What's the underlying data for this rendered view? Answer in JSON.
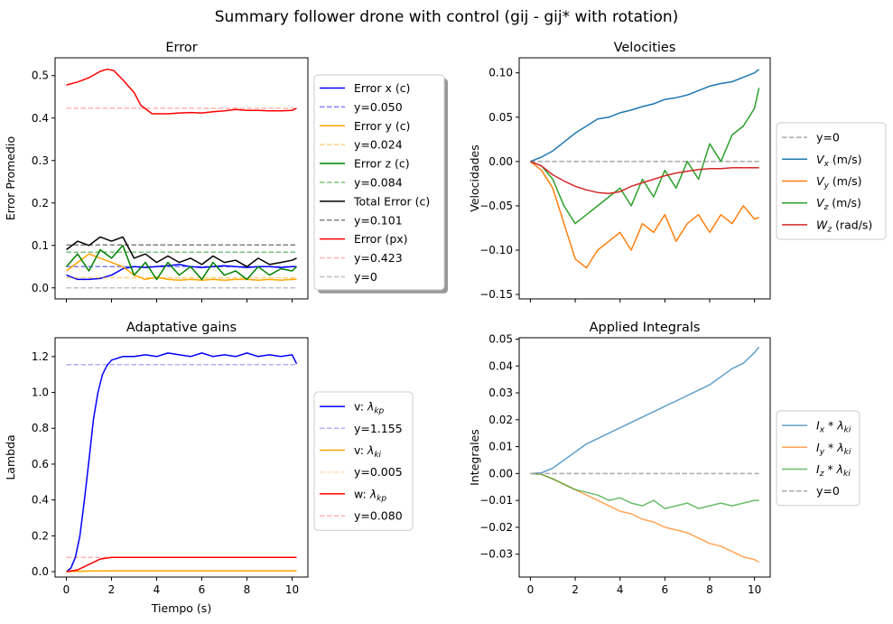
{
  "figure": {
    "title": "Summary follower drone with control (gij - gij* with rotation)"
  },
  "chart_data": [
    {
      "id": "error",
      "type": "line",
      "title": "Error",
      "xlabel": "",
      "ylabel": "Error Promedio",
      "xlim": [
        -0.5,
        10.7
      ],
      "ylim": [
        -0.026,
        0.542
      ],
      "xticks": [
        0,
        2,
        4,
        6,
        8,
        10
      ],
      "xtick_labels_visible": false,
      "yticks": [
        0.0,
        0.1,
        0.2,
        0.3,
        0.4,
        0.5
      ],
      "ytick_labels": [
        "0.0",
        "0.1",
        "0.2",
        "0.3",
        "0.4",
        "0.5"
      ],
      "legend": "outside-right",
      "series": [
        {
          "name": "Error x (c)",
          "color": "#0000ff",
          "style": "solid",
          "x": [
            0,
            0.5,
            1,
            1.5,
            2,
            2.5,
            3,
            3.5,
            4,
            4.5,
            5,
            5.5,
            6,
            6.5,
            7,
            7.5,
            8,
            8.5,
            9,
            9.5,
            10,
            10.2
          ],
          "y": [
            0.03,
            0.02,
            0.02,
            0.022,
            0.03,
            0.045,
            0.05,
            0.048,
            0.05,
            0.052,
            0.055,
            0.05,
            0.048,
            0.05,
            0.052,
            0.05,
            0.048,
            0.05,
            0.05,
            0.048,
            0.05,
            0.05
          ]
        },
        {
          "name": "y=0.050",
          "color": "#0000ff",
          "style": "dashed",
          "alpha": 0.5,
          "x": [
            0,
            10.2
          ],
          "y": [
            0.05,
            0.05
          ]
        },
        {
          "name": "Error y (c)",
          "color": "#ffa500",
          "style": "solid",
          "x": [
            0,
            0.5,
            1,
            1.5,
            2,
            2.5,
            3,
            3.5,
            4,
            4.5,
            5,
            5.5,
            6,
            6.5,
            7,
            7.5,
            8,
            8.5,
            9,
            9.5,
            10,
            10.2
          ],
          "y": [
            0.04,
            0.06,
            0.08,
            0.07,
            0.06,
            0.05,
            0.03,
            0.02,
            0.025,
            0.02,
            0.018,
            0.02,
            0.018,
            0.02,
            0.018,
            0.02,
            0.02,
            0.018,
            0.02,
            0.018,
            0.02,
            0.02
          ]
        },
        {
          "name": "y=0.024",
          "color": "#ffa500",
          "style": "dashed",
          "alpha": 0.5,
          "x": [
            0,
            10.2
          ],
          "y": [
            0.024,
            0.024
          ]
        },
        {
          "name": "Error z (c)",
          "color": "#008000",
          "style": "solid",
          "x": [
            0,
            0.5,
            1,
            1.5,
            2,
            2.5,
            3,
            3.5,
            4,
            4.5,
            5,
            5.5,
            6,
            6.5,
            7,
            7.5,
            8,
            8.5,
            9,
            9.5,
            10,
            10.2
          ],
          "y": [
            0.05,
            0.08,
            0.04,
            0.09,
            0.07,
            0.1,
            0.03,
            0.06,
            0.02,
            0.06,
            0.03,
            0.05,
            0.02,
            0.06,
            0.03,
            0.04,
            0.02,
            0.05,
            0.03,
            0.045,
            0.04,
            0.05
          ]
        },
        {
          "name": "y=0.084",
          "color": "#008000",
          "style": "dashed",
          "alpha": 0.5,
          "x": [
            0,
            10.2
          ],
          "y": [
            0.084,
            0.084
          ]
        },
        {
          "name": "Total Error (c)",
          "color": "#000000",
          "style": "solid",
          "x": [
            0,
            0.5,
            1,
            1.5,
            2,
            2.5,
            3,
            3.5,
            4,
            4.5,
            5,
            5.5,
            6,
            6.5,
            7,
            7.5,
            8,
            8.5,
            9,
            9.5,
            10,
            10.2
          ],
          "y": [
            0.09,
            0.11,
            0.1,
            0.12,
            0.11,
            0.12,
            0.07,
            0.08,
            0.06,
            0.075,
            0.06,
            0.07,
            0.055,
            0.075,
            0.06,
            0.065,
            0.05,
            0.07,
            0.055,
            0.06,
            0.065,
            0.07
          ]
        },
        {
          "name": "y=0.101",
          "color": "#000000",
          "style": "dashed",
          "alpha": 0.5,
          "x": [
            0,
            10.2
          ],
          "y": [
            0.101,
            0.101
          ]
        },
        {
          "name": "Error (px)",
          "color": "#ff0000",
          "style": "solid",
          "x": [
            0,
            0.5,
            1,
            1.5,
            1.8,
            2.1,
            2.5,
            3,
            3.3,
            3.8,
            4.5,
            5,
            5.5,
            6,
            6.5,
            7,
            7.5,
            8,
            8.5,
            9,
            9.5,
            10,
            10.2
          ],
          "y": [
            0.478,
            0.485,
            0.495,
            0.51,
            0.515,
            0.512,
            0.49,
            0.46,
            0.43,
            0.41,
            0.41,
            0.412,
            0.413,
            0.412,
            0.415,
            0.417,
            0.42,
            0.418,
            0.418,
            0.417,
            0.417,
            0.418,
            0.423
          ]
        },
        {
          "name": "y=0.423",
          "color": "#ff0000",
          "style": "dashed",
          "alpha": 0.3,
          "x": [
            0,
            10.2
          ],
          "y": [
            0.423,
            0.423
          ]
        },
        {
          "name": "y=0",
          "color": "#808080",
          "style": "dashed",
          "alpha": 0.5,
          "x": [
            0,
            10.2
          ],
          "y": [
            0,
            0
          ]
        }
      ]
    },
    {
      "id": "velocities",
      "type": "line",
      "title": "Velocities",
      "xlabel": "",
      "ylabel": "Velocidades",
      "xlim": [
        -0.5,
        10.7
      ],
      "ylim": [
        -0.155,
        0.117
      ],
      "xticks": [
        0,
        2,
        4,
        6,
        8,
        10
      ],
      "xtick_labels_visible": false,
      "yticks": [
        -0.15,
        -0.1,
        -0.05,
        0.0,
        0.05,
        0.1
      ],
      "ytick_labels": [
        "−0.15",
        "−0.10",
        "−0.05",
        "0.00",
        "0.05",
        "0.10"
      ],
      "legend": "outside-right",
      "series": [
        {
          "name": "y=0",
          "color": "#aaaaaa",
          "style": "dashed",
          "x": [
            0,
            10.2
          ],
          "y": [
            0,
            0
          ]
        },
        {
          "name": "V_x (m/s)",
          "sub": "x",
          "unit": "(m/s)",
          "color": "#1f77b4",
          "style": "solid",
          "x": [
            0,
            0.5,
            1,
            1.5,
            2,
            2.5,
            3,
            3.5,
            4,
            4.5,
            5,
            5.5,
            6,
            6.5,
            7,
            7.5,
            8,
            8.5,
            9,
            9.5,
            10,
            10.2
          ],
          "y": [
            0,
            0.005,
            0.012,
            0.022,
            0.032,
            0.04,
            0.048,
            0.05,
            0.055,
            0.058,
            0.062,
            0.065,
            0.07,
            0.072,
            0.075,
            0.08,
            0.085,
            0.088,
            0.09,
            0.095,
            0.1,
            0.104
          ]
        },
        {
          "name": "V_y (m/s)",
          "sub": "y",
          "unit": "(m/s)",
          "color": "#ff7f0e",
          "style": "solid",
          "x": [
            0,
            0.5,
            1,
            1.5,
            2,
            2.5,
            3,
            3.5,
            4,
            4.5,
            5,
            5.5,
            6,
            6.5,
            7,
            7.5,
            8,
            8.5,
            9,
            9.5,
            10,
            10.2
          ],
          "y": [
            0,
            -0.01,
            -0.03,
            -0.07,
            -0.11,
            -0.12,
            -0.1,
            -0.09,
            -0.08,
            -0.1,
            -0.07,
            -0.08,
            -0.06,
            -0.09,
            -0.07,
            -0.06,
            -0.08,
            -0.06,
            -0.07,
            -0.05,
            -0.065,
            -0.063
          ]
        },
        {
          "name": "V_z (m/s)",
          "sub": "z",
          "unit": "(m/s)",
          "color": "#2ca02c",
          "style": "solid",
          "x": [
            0,
            0.5,
            1,
            1.5,
            2,
            2.5,
            3,
            3.5,
            4,
            4.5,
            5,
            5.5,
            6,
            6.5,
            7,
            7.5,
            8,
            8.5,
            9,
            9.5,
            10,
            10.2
          ],
          "y": [
            0,
            -0.005,
            -0.02,
            -0.05,
            -0.07,
            -0.06,
            -0.05,
            -0.04,
            -0.03,
            -0.05,
            -0.02,
            -0.04,
            -0.01,
            -0.03,
            0.0,
            -0.02,
            0.02,
            0.0,
            0.03,
            0.04,
            0.06,
            0.083
          ]
        },
        {
          "name": "W_z (rad/s)",
          "sub": "z",
          "unit": "(rad/s)",
          "color": "#d62728",
          "style": "solid",
          "x": [
            0,
            0.5,
            1,
            1.5,
            2,
            2.5,
            3,
            3.5,
            4,
            4.5,
            5,
            5.5,
            6,
            6.5,
            7,
            7.5,
            8,
            8.5,
            9,
            9.5,
            10,
            10.2
          ],
          "y": [
            0,
            -0.005,
            -0.015,
            -0.022,
            -0.028,
            -0.032,
            -0.035,
            -0.036,
            -0.034,
            -0.028,
            -0.024,
            -0.02,
            -0.016,
            -0.013,
            -0.011,
            -0.009,
            -0.008,
            -0.008,
            -0.007,
            -0.007,
            -0.007,
            -0.007
          ]
        }
      ]
    },
    {
      "id": "gains",
      "type": "line",
      "title": "Adaptative gains",
      "xlabel": "Tiempo (s)",
      "ylabel": "Lambda",
      "xlim": [
        -0.5,
        10.7
      ],
      "ylim": [
        -0.03,
        1.305
      ],
      "xticks": [
        0,
        2,
        4,
        6,
        8,
        10
      ],
      "xtick_labels": [
        "0",
        "2",
        "4",
        "6",
        "8",
        "10"
      ],
      "yticks": [
        0.0,
        0.2,
        0.4,
        0.6,
        0.8,
        1.0,
        1.2
      ],
      "ytick_labels": [
        "0.0",
        "0.2",
        "0.4",
        "0.6",
        "0.8",
        "1.0",
        "1.2"
      ],
      "legend": "outside-right",
      "series": [
        {
          "name": "v: λ_kp",
          "prefix": "v: ",
          "sym": "λ",
          "sub": "kp",
          "color": "#0000ff",
          "style": "solid",
          "x": [
            0,
            0.2,
            0.4,
            0.6,
            0.8,
            1.0,
            1.2,
            1.4,
            1.6,
            1.8,
            2.0,
            2.5,
            3,
            3.5,
            4,
            4.5,
            5,
            5.5,
            6,
            6.5,
            7,
            7.5,
            8,
            8.5,
            9,
            9.5,
            10,
            10.2
          ],
          "y": [
            0,
            0.02,
            0.08,
            0.2,
            0.4,
            0.62,
            0.85,
            1.0,
            1.1,
            1.15,
            1.18,
            1.2,
            1.2,
            1.21,
            1.2,
            1.22,
            1.21,
            1.2,
            1.22,
            1.2,
            1.21,
            1.2,
            1.22,
            1.2,
            1.21,
            1.2,
            1.21,
            1.16
          ]
        },
        {
          "name": "y=1.155",
          "color": "#0000ff",
          "style": "dashed",
          "alpha": 0.3,
          "x": [
            0,
            10.2
          ],
          "y": [
            1.155,
            1.155
          ]
        },
        {
          "name": "v: λ_ki",
          "prefix": "v: ",
          "sym": "λ",
          "sub": "ki",
          "color": "#ffa500",
          "style": "solid",
          "x": [
            0,
            1,
            2,
            4,
            6,
            8,
            10.2
          ],
          "y": [
            0.0,
            0.003,
            0.005,
            0.005,
            0.005,
            0.005,
            0.005
          ]
        },
        {
          "name": "y=0.005",
          "color": "#ffa500",
          "style": "dashed",
          "alpha": 0.3,
          "x": [
            0,
            10.2
          ],
          "y": [
            0.005,
            0.005
          ]
        },
        {
          "name": "w: λ_kp",
          "prefix": "w: ",
          "sym": "λ",
          "sub": "kp",
          "color": "#ff0000",
          "style": "solid",
          "x": [
            0,
            0.5,
            1.0,
            1.5,
            2.0,
            2.5,
            4,
            6,
            8,
            10.2
          ],
          "y": [
            0.0,
            0.01,
            0.04,
            0.07,
            0.08,
            0.08,
            0.08,
            0.08,
            0.08,
            0.08
          ]
        },
        {
          "name": "y=0.080",
          "color": "#ff0000",
          "style": "dashed",
          "alpha": 0.3,
          "x": [
            0,
            10.2
          ],
          "y": [
            0.08,
            0.08
          ]
        }
      ]
    },
    {
      "id": "integrals",
      "type": "line",
      "title": "Applied Integrals",
      "xlabel": "",
      "ylabel": "Integrales",
      "xlim": [
        -0.5,
        10.7
      ],
      "ylim": [
        -0.0385,
        0.0505
      ],
      "xticks": [
        0,
        2,
        4,
        6,
        8,
        10
      ],
      "xtick_labels": [
        "0",
        "2",
        "4",
        "6",
        "8",
        "10"
      ],
      "yticks": [
        -0.03,
        -0.02,
        -0.01,
        0.0,
        0.01,
        0.02,
        0.03,
        0.04,
        0.05
      ],
      "ytick_labels": [
        "−0.03",
        "−0.02",
        "−0.01",
        "0.00",
        "0.01",
        "0.02",
        "0.03",
        "0.04",
        "0.05"
      ],
      "legend": "outside-right",
      "series": [
        {
          "name": "I_x * λ_ki",
          "sub": "x",
          "color": "#1f77b4",
          "style": "solid",
          "alpha": 0.7,
          "x": [
            0,
            0.5,
            1,
            1.5,
            2,
            2.5,
            3,
            3.5,
            4,
            4.5,
            5,
            5.5,
            6,
            6.5,
            7,
            7.5,
            8,
            8.5,
            9,
            9.5,
            10,
            10.2
          ],
          "y": [
            0,
            0.0003,
            0.002,
            0.005,
            0.008,
            0.011,
            0.013,
            0.015,
            0.017,
            0.019,
            0.021,
            0.023,
            0.025,
            0.027,
            0.029,
            0.031,
            0.033,
            0.036,
            0.039,
            0.041,
            0.045,
            0.047
          ]
        },
        {
          "name": "I_y * λ_ki",
          "sub": "y",
          "color": "#ff7f0e",
          "style": "solid",
          "alpha": 0.7,
          "x": [
            0,
            0.5,
            1,
            1.5,
            2,
            2.5,
            3,
            3.5,
            4,
            4.5,
            5,
            5.5,
            6,
            6.5,
            7,
            7.5,
            8,
            8.5,
            9,
            9.5,
            10,
            10.2
          ],
          "y": [
            0,
            -0.0003,
            -0.002,
            -0.004,
            -0.006,
            -0.008,
            -0.01,
            -0.012,
            -0.014,
            -0.015,
            -0.017,
            -0.018,
            -0.02,
            -0.021,
            -0.022,
            -0.024,
            -0.026,
            -0.027,
            -0.029,
            -0.031,
            -0.032,
            -0.033
          ]
        },
        {
          "name": "I_z * λ_ki",
          "sub": "z",
          "color": "#2ca02c",
          "style": "solid",
          "alpha": 0.7,
          "x": [
            0,
            0.5,
            1,
            1.5,
            2,
            2.5,
            3,
            3.5,
            4,
            4.5,
            5,
            5.5,
            6,
            6.5,
            7,
            7.5,
            8,
            8.5,
            9,
            9.5,
            10,
            10.2
          ],
          "y": [
            0,
            -0.0003,
            -0.002,
            -0.004,
            -0.006,
            -0.007,
            -0.008,
            -0.01,
            -0.009,
            -0.011,
            -0.012,
            -0.01,
            -0.013,
            -0.012,
            -0.011,
            -0.013,
            -0.012,
            -0.011,
            -0.012,
            -0.011,
            -0.01,
            -0.01
          ]
        },
        {
          "name": "y=0",
          "color": "#aaaaaa",
          "style": "dashed",
          "x": [
            0,
            10.2
          ],
          "y": [
            0,
            0
          ]
        }
      ]
    }
  ]
}
